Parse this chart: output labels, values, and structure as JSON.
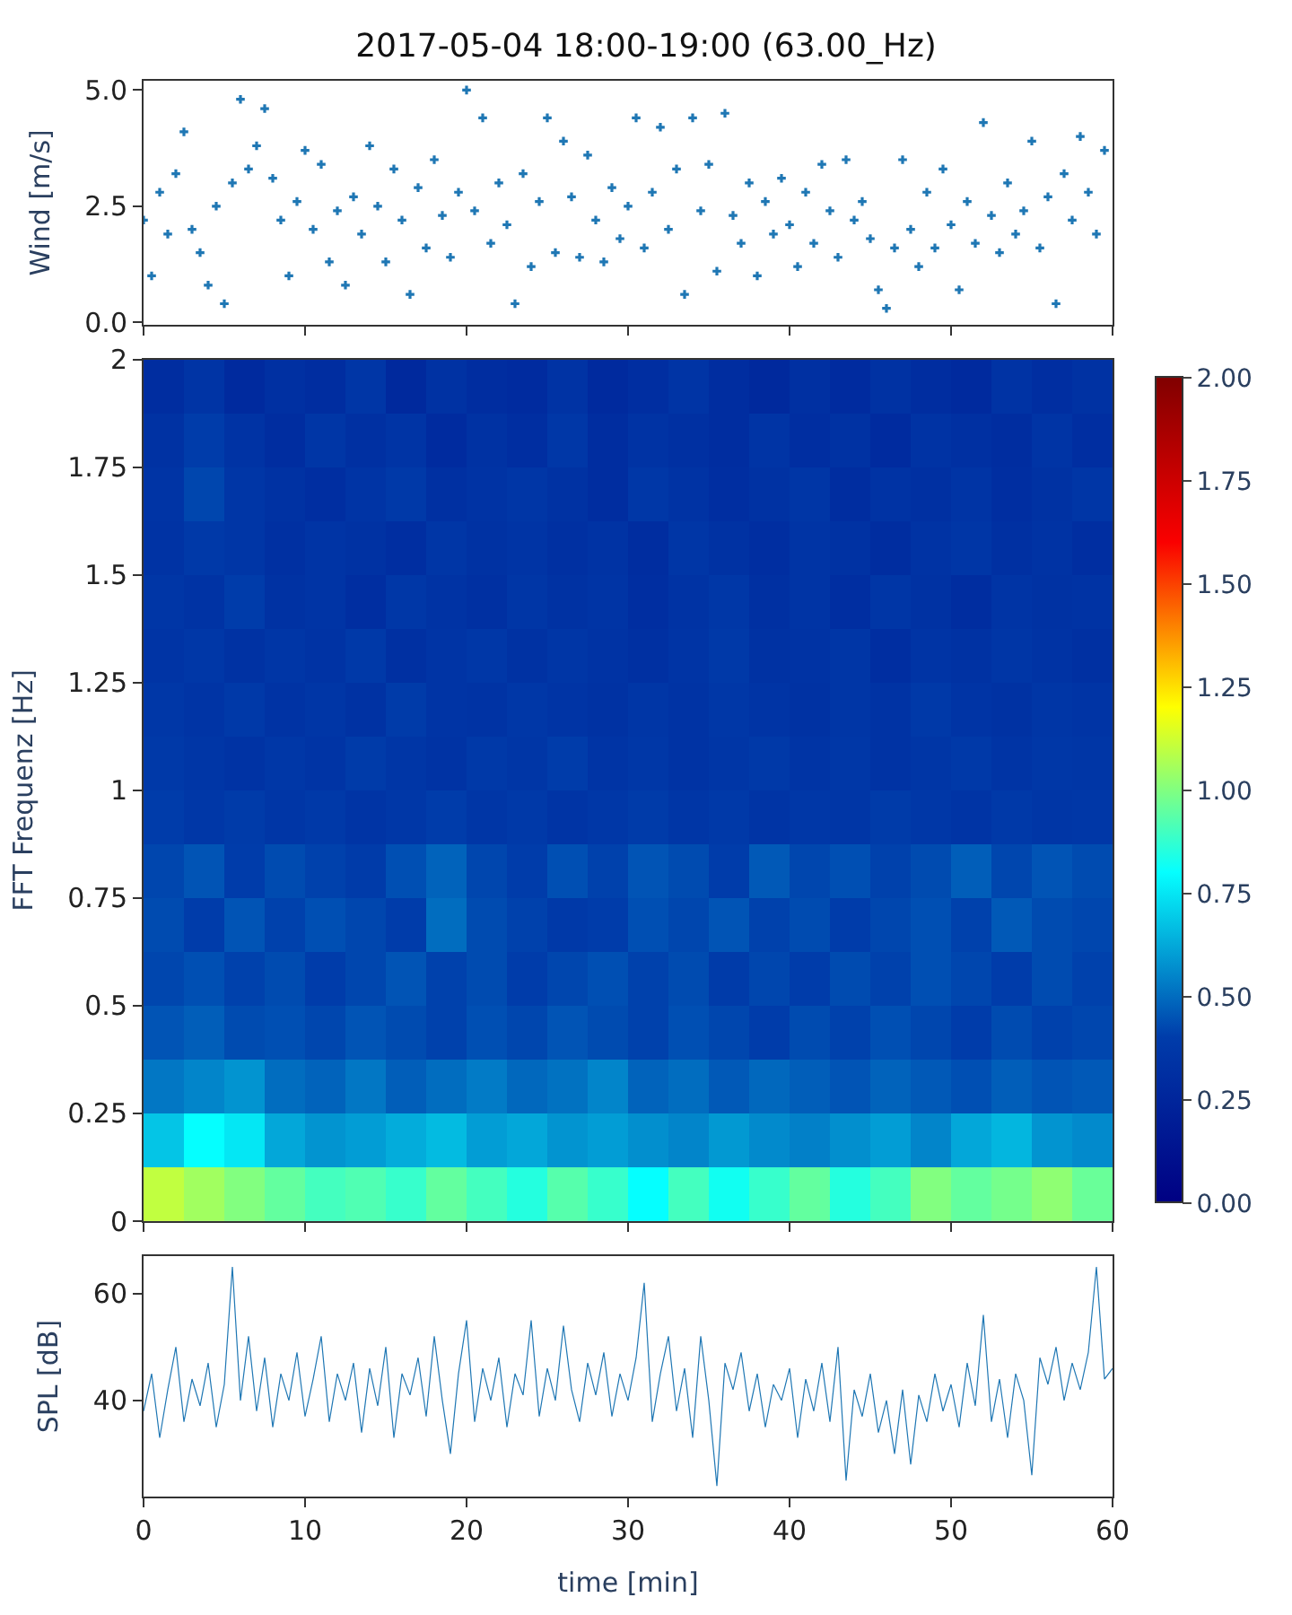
{
  "chart_data": [
    {
      "type": "scatter",
      "title": "2017-05-04 18:00-19:00 (63.00_Hz)",
      "ylabel": "Wind [m/s]",
      "marker": "cross",
      "tick_labels": "y",
      "xlim": [
        0,
        60
      ],
      "xticks": [
        {
          "value": 0,
          "label": null
        },
        {
          "value": 10,
          "label": null
        },
        {
          "value": 20,
          "label": null
        },
        {
          "value": 30,
          "label": null
        },
        {
          "value": 40,
          "label": null
        },
        {
          "value": 50,
          "label": null
        },
        {
          "value": 60,
          "label": null
        }
      ],
      "ylim": [
        -0.05,
        5.2
      ],
      "yticks": [
        {
          "value": 0,
          "label": "0.0"
        },
        {
          "value": 2.5,
          "label": "2.5"
        },
        {
          "value": 5,
          "label": "5.0"
        }
      ],
      "x": [
        0,
        0.5,
        1,
        1.5,
        2,
        2.5,
        3,
        3.5,
        4,
        4.5,
        5,
        5.5,
        6,
        6.5,
        7,
        7.5,
        8,
        8.5,
        9,
        9.5,
        10,
        10.5,
        11,
        11.5,
        12,
        12.5,
        13,
        13.5,
        14,
        14.5,
        15,
        15.5,
        16,
        16.5,
        17,
        17.5,
        18,
        18.5,
        19,
        19.5,
        20,
        20.5,
        21,
        21.5,
        22,
        22.5,
        23,
        23.5,
        24,
        24.5,
        25,
        25.5,
        26,
        26.5,
        27,
        27.5,
        28,
        28.5,
        29,
        29.5,
        30,
        30.5,
        31,
        31.5,
        32,
        32.5,
        33,
        33.5,
        34,
        34.5,
        35,
        35.5,
        36,
        36.5,
        37,
        37.5,
        38,
        38.5,
        39,
        39.5,
        40,
        40.5,
        41,
        41.5,
        42,
        42.5,
        43,
        43.5,
        44,
        44.5,
        45,
        45.5,
        46,
        46.5,
        47,
        47.5,
        48,
        48.5,
        49,
        49.5,
        50,
        50.5,
        51,
        51.5,
        52,
        52.5,
        53,
        53.5,
        54,
        54.5,
        55,
        55.5,
        56,
        56.5,
        57,
        57.5,
        58,
        58.5,
        59,
        59.5
      ],
      "series": [
        {
          "color": "#1f77b4",
          "values": [
            2.2,
            1.0,
            2.8,
            1.9,
            3.2,
            4.1,
            2.0,
            1.5,
            0.8,
            2.5,
            0.4,
            3.0,
            4.8,
            3.3,
            3.8,
            4.6,
            3.1,
            2.2,
            1.0,
            2.6,
            3.7,
            2.0,
            3.4,
            1.3,
            2.4,
            0.8,
            2.7,
            1.9,
            3.8,
            2.5,
            1.3,
            3.3,
            2.2,
            0.6,
            2.9,
            1.6,
            3.5,
            2.3,
            1.4,
            2.8,
            5.0,
            2.4,
            4.4,
            1.7,
            3.0,
            2.1,
            0.4,
            3.2,
            1.2,
            2.6,
            4.4,
            1.5,
            3.9,
            2.7,
            1.4,
            3.6,
            2.2,
            1.3,
            2.9,
            1.8,
            2.5,
            4.4,
            1.6,
            2.8,
            4.2,
            2.0,
            3.3,
            0.6,
            4.4,
            2.4,
            3.4,
            1.1,
            4.5,
            2.3,
            1.7,
            3.0,
            1.0,
            2.6,
            1.9,
            3.1,
            2.1,
            1.2,
            2.8,
            1.7,
            3.4,
            2.4,
            1.4,
            3.5,
            2.2,
            2.6,
            1.8,
            0.7,
            0.3,
            1.6,
            3.5,
            2.0,
            1.2,
            2.8,
            1.6,
            3.3,
            2.1,
            0.7,
            2.6,
            1.7,
            4.3,
            2.3,
            1.5,
            3.0,
            1.9,
            2.4,
            3.9,
            1.6,
            2.7,
            0.4,
            3.2,
            2.2,
            4.0,
            2.8,
            1.9,
            3.7
          ]
        }
      ]
    },
    {
      "type": "heatmap",
      "ylabel": "FFT Frequenz [Hz]",
      "tick_labels": "y",
      "xlim": [
        0,
        60
      ],
      "xticks": [
        {
          "value": 0,
          "label": null
        },
        {
          "value": 10,
          "label": null
        },
        {
          "value": 20,
          "label": null
        },
        {
          "value": 30,
          "label": null
        },
        {
          "value": 40,
          "label": null
        },
        {
          "value": 50,
          "label": null
        },
        {
          "value": 60,
          "label": null
        }
      ],
      "ylim": [
        0,
        2
      ],
      "yticks": [
        0,
        0.25,
        0.5,
        0.75,
        1,
        1.25,
        1.5,
        1.75,
        2
      ],
      "clim": [
        0,
        2
      ],
      "cticks": [
        {
          "value": 0,
          "label": "0.00"
        },
        {
          "value": 0.25,
          "label": "0.25"
        },
        {
          "value": 0.5,
          "label": "0.50"
        },
        {
          "value": 0.75,
          "label": "0.75"
        },
        {
          "value": 1,
          "label": "1.00"
        },
        {
          "value": 1.25,
          "label": "1.25"
        },
        {
          "value": 1.5,
          "label": "1.50"
        },
        {
          "value": 1.75,
          "label": "1.75"
        },
        {
          "value": 2,
          "label": "2.00"
        }
      ],
      "x": [
        1.25,
        3.75,
        6.25,
        8.75,
        11.25,
        13.75,
        16.25,
        18.75,
        21.25,
        23.75,
        26.25,
        28.75,
        31.25,
        33.75,
        36.25,
        38.75,
        41.25,
        43.75,
        46.25,
        48.75,
        51.25,
        53.75,
        56.25,
        58.75
      ],
      "y": [
        1.9375,
        1.8125,
        1.6875,
        1.5625,
        1.4375,
        1.3125,
        1.1875,
        1.0625,
        0.9375,
        0.8125,
        0.6875,
        0.5625,
        0.4375,
        0.3125,
        0.1875,
        0.0625
      ],
      "cells": [
        [
          0.3,
          0.35,
          0.28,
          0.32,
          0.3,
          0.36,
          0.27,
          0.33,
          0.3,
          0.29,
          0.34,
          0.28,
          0.31,
          0.35,
          0.3,
          0.27,
          0.32,
          0.29,
          0.33,
          0.3,
          0.28,
          0.34,
          0.31,
          0.33
        ],
        [
          0.33,
          0.4,
          0.34,
          0.3,
          0.36,
          0.32,
          0.35,
          0.29,
          0.33,
          0.31,
          0.37,
          0.3,
          0.34,
          0.32,
          0.3,
          0.35,
          0.31,
          0.33,
          0.29,
          0.34,
          0.32,
          0.3,
          0.35,
          0.31
        ],
        [
          0.35,
          0.42,
          0.36,
          0.33,
          0.31,
          0.35,
          0.38,
          0.32,
          0.34,
          0.36,
          0.33,
          0.3,
          0.37,
          0.34,
          0.31,
          0.33,
          0.36,
          0.3,
          0.34,
          0.32,
          0.35,
          0.31,
          0.33,
          0.36
        ],
        [
          0.34,
          0.38,
          0.36,
          0.32,
          0.35,
          0.33,
          0.31,
          0.36,
          0.33,
          0.35,
          0.32,
          0.34,
          0.3,
          0.36,
          0.33,
          0.31,
          0.35,
          0.33,
          0.3,
          0.34,
          0.36,
          0.32,
          0.34,
          0.31
        ],
        [
          0.36,
          0.34,
          0.4,
          0.33,
          0.35,
          0.31,
          0.37,
          0.34,
          0.32,
          0.36,
          0.33,
          0.35,
          0.31,
          0.34,
          0.37,
          0.32,
          0.35,
          0.31,
          0.36,
          0.33,
          0.3,
          0.35,
          0.33,
          0.34
        ],
        [
          0.35,
          0.37,
          0.33,
          0.36,
          0.34,
          0.38,
          0.32,
          0.35,
          0.37,
          0.33,
          0.36,
          0.34,
          0.32,
          0.35,
          0.38,
          0.33,
          0.34,
          0.36,
          0.31,
          0.35,
          0.33,
          0.36,
          0.34,
          0.32
        ],
        [
          0.37,
          0.35,
          0.38,
          0.34,
          0.36,
          0.33,
          0.39,
          0.35,
          0.34,
          0.37,
          0.35,
          0.33,
          0.36,
          0.34,
          0.37,
          0.35,
          0.33,
          0.36,
          0.34,
          0.38,
          0.35,
          0.33,
          0.36,
          0.35
        ],
        [
          0.38,
          0.36,
          0.34,
          0.37,
          0.35,
          0.39,
          0.36,
          0.34,
          0.38,
          0.36,
          0.4,
          0.35,
          0.37,
          0.34,
          0.36,
          0.38,
          0.35,
          0.37,
          0.34,
          0.36,
          0.38,
          0.35,
          0.37,
          0.36
        ],
        [
          0.4,
          0.37,
          0.39,
          0.36,
          0.38,
          0.35,
          0.37,
          0.4,
          0.36,
          0.38,
          0.35,
          0.37,
          0.39,
          0.36,
          0.38,
          0.35,
          0.37,
          0.36,
          0.39,
          0.37,
          0.35,
          0.38,
          0.36,
          0.37
        ],
        [
          0.42,
          0.45,
          0.4,
          0.43,
          0.41,
          0.39,
          0.44,
          0.48,
          0.42,
          0.4,
          0.44,
          0.41,
          0.45,
          0.43,
          0.4,
          0.46,
          0.42,
          0.44,
          0.41,
          0.43,
          0.47,
          0.42,
          0.45,
          0.43
        ],
        [
          0.43,
          0.4,
          0.45,
          0.41,
          0.44,
          0.42,
          0.4,
          0.5,
          0.43,
          0.41,
          0.38,
          0.4,
          0.44,
          0.42,
          0.45,
          0.41,
          0.43,
          0.4,
          0.42,
          0.44,
          0.41,
          0.46,
          0.43,
          0.42
        ],
        [
          0.42,
          0.44,
          0.41,
          0.43,
          0.4,
          0.42,
          0.45,
          0.41,
          0.43,
          0.4,
          0.42,
          0.44,
          0.41,
          0.43,
          0.39,
          0.42,
          0.4,
          0.43,
          0.41,
          0.44,
          0.42,
          0.4,
          0.43,
          0.41
        ],
        [
          0.45,
          0.47,
          0.43,
          0.44,
          0.42,
          0.45,
          0.43,
          0.41,
          0.44,
          0.42,
          0.45,
          0.43,
          0.41,
          0.44,
          0.42,
          0.4,
          0.43,
          0.41,
          0.44,
          0.42,
          0.4,
          0.43,
          0.41,
          0.42
        ],
        [
          0.52,
          0.55,
          0.58,
          0.5,
          0.48,
          0.52,
          0.47,
          0.5,
          0.53,
          0.49,
          0.51,
          0.55,
          0.48,
          0.5,
          0.46,
          0.49,
          0.47,
          0.45,
          0.48,
          0.46,
          0.44,
          0.47,
          0.45,
          0.46
        ],
        [
          0.68,
          0.8,
          0.75,
          0.62,
          0.58,
          0.6,
          0.63,
          0.66,
          0.6,
          0.62,
          0.58,
          0.6,
          0.57,
          0.55,
          0.59,
          0.56,
          0.54,
          0.57,
          0.6,
          0.55,
          0.62,
          0.65,
          0.58,
          0.56
        ],
        [
          1.1,
          1.05,
          1.0,
          0.95,
          0.9,
          0.92,
          0.88,
          0.95,
          0.9,
          0.85,
          0.93,
          0.88,
          0.8,
          0.9,
          0.82,
          0.88,
          0.95,
          0.85,
          0.9,
          1.0,
          0.95,
          0.98,
          1.02,
          0.96
        ]
      ]
    },
    {
      "type": "line",
      "xlabel": "time [min]",
      "ylabel": "SPL [dB]",
      "marker": "none",
      "xlim": [
        0,
        60
      ],
      "xticks": [
        0,
        10,
        20,
        30,
        40,
        50,
        60
      ],
      "ylim": [
        22,
        67
      ],
      "yticks": [
        40,
        60
      ],
      "x": [
        0,
        0.5,
        1,
        1.5,
        2,
        2.5,
        3,
        3.5,
        4,
        4.5,
        5,
        5.5,
        6,
        6.5,
        7,
        7.5,
        8,
        8.5,
        9,
        9.5,
        10,
        10.5,
        11,
        11.5,
        12,
        12.5,
        13,
        13.5,
        14,
        14.5,
        15,
        15.5,
        16,
        16.5,
        17,
        17.5,
        18,
        18.5,
        19,
        19.5,
        20,
        20.5,
        21,
        21.5,
        22,
        22.5,
        23,
        23.5,
        24,
        24.5,
        25,
        25.5,
        26,
        26.5,
        27,
        27.5,
        28,
        28.5,
        29,
        29.5,
        30,
        30.5,
        31,
        31.5,
        32,
        32.5,
        33,
        33.5,
        34,
        34.5,
        35,
        35.5,
        36,
        36.5,
        37,
        37.5,
        38,
        38.5,
        39,
        39.5,
        40,
        40.5,
        41,
        41.5,
        42,
        42.5,
        43,
        43.5,
        44,
        44.5,
        45,
        45.5,
        46,
        46.5,
        47,
        47.5,
        48,
        48.5,
        49,
        49.5,
        50,
        50.5,
        51,
        51.5,
        52,
        52.5,
        53,
        53.5,
        54,
        54.5,
        55,
        55.5,
        56,
        56.5,
        57,
        57.5,
        58,
        58.5,
        59,
        59.5,
        60
      ],
      "series": [
        {
          "color": "#1f77b4",
          "values": [
            38,
            45,
            33,
            42,
            50,
            36,
            44,
            39,
            47,
            35,
            43,
            65,
            40,
            52,
            38,
            48,
            35,
            45,
            40,
            49,
            37,
            44,
            52,
            36,
            45,
            40,
            47,
            34,
            46,
            39,
            50,
            33,
            45,
            41,
            48,
            37,
            52,
            40,
            30,
            45,
            55,
            36,
            46,
            40,
            48,
            35,
            45,
            41,
            55,
            37,
            46,
            40,
            54,
            42,
            36,
            47,
            41,
            49,
            37,
            45,
            40,
            48,
            62,
            36,
            45,
            52,
            38,
            46,
            33,
            52,
            40,
            24,
            47,
            42,
            49,
            38,
            45,
            35,
            43,
            40,
            46,
            33,
            44,
            38,
            47,
            36,
            50,
            25,
            42,
            37,
            45,
            34,
            40,
            30,
            42,
            28,
            41,
            36,
            45,
            38,
            43,
            35,
            47,
            39,
            56,
            36,
            44,
            33,
            45,
            40,
            26,
            48,
            43,
            50,
            40,
            47,
            42,
            49,
            65,
            44,
            46
          ]
        }
      ]
    }
  ]
}
